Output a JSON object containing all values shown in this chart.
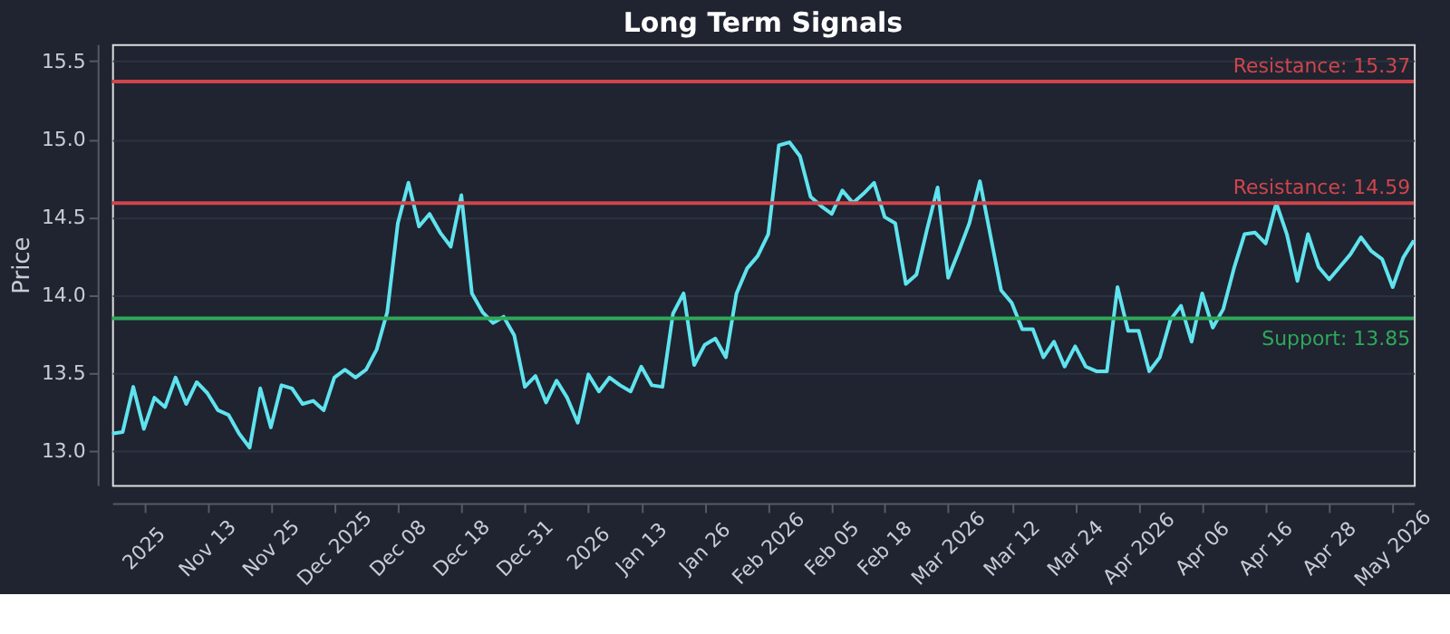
{
  "chart_data": {
    "type": "line",
    "title": "Long Term Signals",
    "ylabel": "Price",
    "categories": [
      null,
      null,
      null,
      "2025",
      null,
      null,
      null,
      null,
      null,
      "Nov 13",
      null,
      null,
      null,
      null,
      null,
      "Nov 25",
      null,
      null,
      null,
      null,
      null,
      "Dec 2025",
      null,
      null,
      null,
      null,
      null,
      "Dec 08",
      null,
      null,
      null,
      null,
      null,
      "Dec 18",
      null,
      null,
      null,
      null,
      null,
      "Dec 31",
      null,
      null,
      null,
      null,
      null,
      "2026",
      null,
      null,
      null,
      null,
      "Jan 13",
      null,
      null,
      null,
      null,
      null,
      "Jan 26",
      null,
      null,
      null,
      null,
      null,
      "Feb 2026",
      null,
      null,
      null,
      null,
      null,
      "Feb 05",
      null,
      null,
      null,
      null,
      "Feb 18",
      null,
      null,
      null,
      null,
      null,
      "Mar 2026",
      null,
      null,
      null,
      null,
      null,
      "Mar 12",
      null,
      null,
      null,
      null,
      null,
      "Mar 24",
      null,
      null,
      null,
      null,
      null,
      "Apr 2026",
      null,
      null,
      null,
      null,
      null,
      "Apr 06",
      null,
      null,
      null,
      null,
      null,
      "Apr 16",
      null,
      null,
      null,
      null,
      null,
      "Apr 28",
      null,
      null,
      null,
      null,
      null,
      "May 2026",
      null,
      null
    ],
    "series": [
      {
        "color": "#5fe3ee",
        "values": [
          13.11,
          13.12,
          13.41,
          13.14,
          13.34,
          13.28,
          13.47,
          13.3,
          13.44,
          13.37,
          13.26,
          13.23,
          13.11,
          13.02,
          13.4,
          13.15,
          13.42,
          13.4,
          13.3,
          13.32,
          13.26,
          13.47,
          13.52,
          13.47,
          13.52,
          13.65,
          13.89,
          14.46,
          14.72,
          14.44,
          14.52,
          14.4,
          14.31,
          14.64,
          14.01,
          13.89,
          13.82,
          13.86,
          13.74,
          13.41,
          13.48,
          13.31,
          13.45,
          13.34,
          13.18,
          13.49,
          13.38,
          13.47,
          13.42,
          13.38,
          13.54,
          13.42,
          13.41,
          13.88,
          14.01,
          13.55,
          13.68,
          13.72,
          13.6,
          14.01,
          14.17,
          14.25,
          14.39,
          14.96,
          14.98,
          14.89,
          14.63,
          14.57,
          14.52,
          14.67,
          14.59,
          14.65,
          14.72,
          14.5,
          14.46,
          14.07,
          14.13,
          14.42,
          14.69,
          14.11,
          14.28,
          14.46,
          14.73,
          14.38,
          14.03,
          13.95,
          13.78,
          13.78,
          13.6,
          13.7,
          13.54,
          13.67,
          13.54,
          13.51,
          13.51,
          14.05,
          13.77,
          13.77,
          13.51,
          13.6,
          13.84,
          13.93,
          13.7,
          14.01,
          13.79,
          13.91,
          14.17,
          14.39,
          14.4,
          14.33,
          14.59,
          14.39,
          14.09,
          14.39,
          14.18,
          14.1,
          14.18,
          14.26,
          14.37,
          14.28,
          14.23,
          14.05,
          14.24,
          14.35
        ]
      }
    ],
    "ylim": [
      12.78,
      15.61
    ],
    "yticks": [
      {
        "value": 13,
        "label": "13.0"
      },
      13.5,
      {
        "value": 14,
        "label": "14.0"
      },
      14.5,
      {
        "value": 15,
        "label": "15.0"
      },
      15.5
    ],
    "ref_lines": [
      {
        "axis": "y",
        "value": 15.37,
        "label": "Resistance: 15.37",
        "color": "#d0454c"
      },
      {
        "axis": "y",
        "value": 14.59,
        "label": "Resistance: 14.59",
        "color": "#d0454c"
      },
      {
        "axis": "y",
        "value": 13.85,
        "label": "Support: 13.85",
        "color": "#2fa85a"
      }
    ],
    "grid": "y",
    "marker": "none",
    "line_style": "solid"
  }
}
